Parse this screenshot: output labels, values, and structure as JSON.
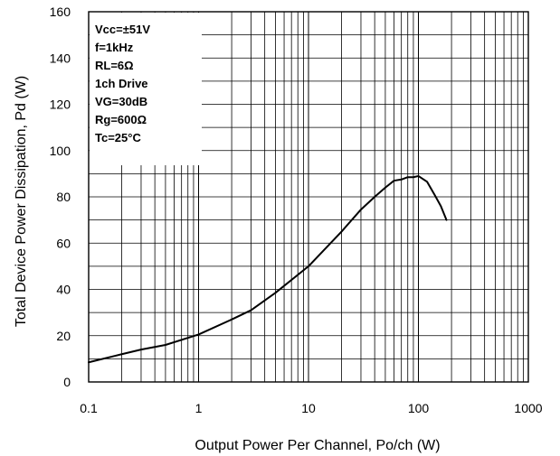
{
  "chart_data": {
    "type": "line",
    "x_scale": "log",
    "y_scale": "linear",
    "xlim": [
      0.1,
      1000
    ],
    "ylim": [
      0,
      160
    ],
    "xlabel": "Output Power Per Channel, Po/ch (W)",
    "ylabel": "Total Device Power Dissipation, Pd (W)",
    "x_ticks": [
      "0.1",
      "1",
      "10",
      "100",
      "1000"
    ],
    "y_ticks": [
      "0",
      "20",
      "40",
      "60",
      "80",
      "100",
      "120",
      "140",
      "160"
    ],
    "x_tick_values": [
      0.1,
      1,
      10,
      100,
      1000
    ],
    "y_tick_values": [
      0,
      20,
      40,
      60,
      80,
      100,
      120,
      140,
      160
    ],
    "grid": true,
    "annotation": [
      "Vcc=±51V",
      "f=1kHz",
      "RL=6Ω",
      "1ch Drive",
      "VG=30dB",
      "Rg=600Ω",
      "Tc=25°C"
    ],
    "series": [
      {
        "x": [
          0.1,
          0.2,
          0.3,
          0.5,
          1,
          2,
          3,
          5,
          10,
          20,
          30,
          40,
          50,
          60,
          70,
          80,
          90,
          100,
          120,
          140,
          160,
          180
        ],
        "y": [
          8.5,
          12,
          14,
          16,
          20.5,
          27,
          31,
          38.5,
          50,
          65,
          74.5,
          80,
          84,
          87,
          87.5,
          88.5,
          88.5,
          89,
          86.5,
          81,
          76,
          70
        ]
      }
    ],
    "line_color": "#000000",
    "grid_color": "#000000",
    "background": "#ffffff"
  }
}
